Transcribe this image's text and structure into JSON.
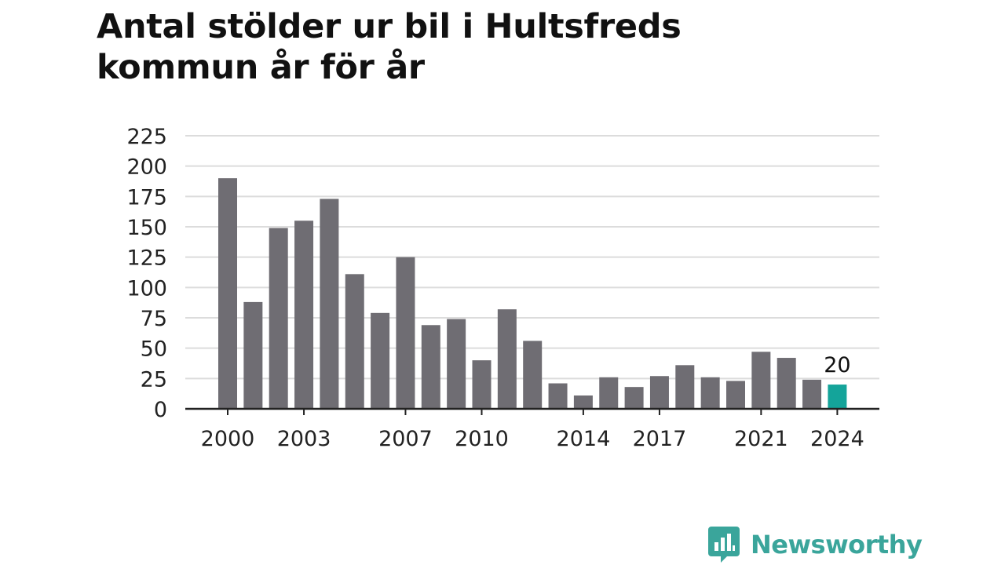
{
  "title_line1": "Antal stölder ur bil i Hultsfreds",
  "title_line2": "kommun år för år",
  "brand": {
    "name": "Newsworthy",
    "color": "#3aa59b",
    "icon": "chat-bubble-bar-chart-icon"
  },
  "colors": {
    "bar": "#6f6d73",
    "highlight": "#14a49a",
    "grid": "#dcdcdc",
    "axis": "#222222"
  },
  "chart_data": {
    "type": "bar",
    "title": "Antal stölder ur bil i Hultsfreds kommun år för år",
    "xlabel": "",
    "ylabel": "",
    "categories": [
      "2000",
      "2001",
      "2002",
      "2003",
      "2004",
      "2005",
      "2006",
      "2007",
      "2008",
      "2009",
      "2010",
      "2011",
      "2012",
      "2013",
      "2014",
      "2015",
      "2016",
      "2017",
      "2018",
      "2019",
      "2020",
      "2021",
      "2022",
      "2023",
      "2024"
    ],
    "values": [
      190,
      88,
      149,
      155,
      173,
      111,
      79,
      125,
      69,
      74,
      40,
      82,
      56,
      21,
      11,
      26,
      18,
      27,
      36,
      26,
      23,
      47,
      42,
      24,
      20
    ],
    "ylim": [
      0,
      225
    ],
    "yticks": [
      0,
      25,
      50,
      75,
      100,
      125,
      150,
      175,
      200,
      225
    ],
    "xtick_labels": [
      "2000",
      "2003",
      "2007",
      "2010",
      "2014",
      "2017",
      "2021",
      "2024"
    ],
    "highlight": {
      "category": "2024",
      "label": "20"
    },
    "grid": true,
    "legend": "none"
  }
}
